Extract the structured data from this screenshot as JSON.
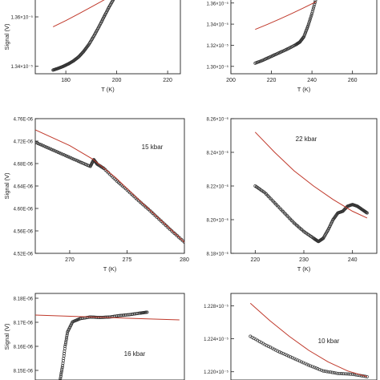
{
  "chart_data": [
    {
      "type": "scatter",
      "xlabel": "T (K)",
      "ylabel": "Signal (V)",
      "annotation": "",
      "xlim": [
        168,
        225
      ],
      "ylim": [
        1.337,
        1.372
      ],
      "xticks": [
        180,
        200,
        220
      ],
      "yticks": [
        1.34,
        1.36
      ],
      "yticklabels": [
        "1.34×10⁻⁵",
        "1.36×10⁻⁵"
      ],
      "series": [
        {
          "kind": "data",
          "points": [
            [
              175,
              1.3385
            ],
            [
              177,
              1.3392
            ],
            [
              179,
              1.34
            ],
            [
              181,
              1.341
            ],
            [
              183,
              1.3422
            ],
            [
              185,
              1.3438
            ],
            [
              187,
              1.346
            ],
            [
              189,
              1.3488
            ],
            [
              191,
              1.3522
            ],
            [
              193,
              1.356
            ],
            [
              195,
              1.36
            ],
            [
              197,
              1.364
            ],
            [
              199,
              1.3676
            ]
          ]
        },
        {
          "kind": "fit",
          "color": "#c0392b",
          "points": [
            [
              175,
              1.356
            ],
            [
              180,
              1.3585
            ],
            [
              185,
              1.3612
            ],
            [
              190,
              1.364
            ],
            [
              195,
              1.3668
            ],
            [
              199,
              1.3692
            ]
          ]
        }
      ]
    },
    {
      "type": "scatter",
      "xlabel": "T (K)",
      "ylabel": "",
      "annotation": "",
      "xlim": [
        200,
        272
      ],
      "ylim": [
        1.293,
        1.375
      ],
      "xticks": [
        200,
        220,
        240,
        260
      ],
      "yticks": [
        1.3,
        1.32,
        1.34,
        1.36
      ],
      "yticklabels": [
        "1.30×10⁻⁵",
        "1.32×10⁻⁵",
        "1.34×10⁻⁵",
        "1.36×10⁻⁵"
      ],
      "series": [
        {
          "kind": "data",
          "points": [
            [
              212,
              1.303
            ],
            [
              216,
              1.306
            ],
            [
              220,
              1.3095
            ],
            [
              224,
              1.313
            ],
            [
              228,
              1.3165
            ],
            [
              232,
              1.3205
            ],
            [
              234,
              1.323
            ],
            [
              236,
              1.328
            ],
            [
              238,
              1.338
            ],
            [
              240,
              1.35
            ],
            [
              242,
              1.364
            ]
          ]
        },
        {
          "kind": "fit",
          "color": "#c0392b",
          "points": [
            [
              212,
              1.335
            ],
            [
              218,
              1.3398
            ],
            [
              224,
              1.3448
            ],
            [
              230,
              1.35
            ],
            [
              236,
              1.3555
            ],
            [
              242,
              1.3612
            ]
          ]
        }
      ]
    },
    {
      "type": "scatter",
      "xlabel": "T (K)",
      "ylabel": "Signal (V)",
      "annotation": "15 kbar",
      "xlim": [
        267,
        280
      ],
      "ylim": [
        4.52,
        4.76
      ],
      "xticks": [
        270,
        275,
        280
      ],
      "yticks": [
        4.52,
        4.56,
        4.6,
        4.64,
        4.68,
        4.72,
        4.76
      ],
      "yticklabels": [
        "4.52E-06",
        "4.56E-06",
        "4.60E-06",
        "4.64E-06",
        "4.68E-06",
        "4.72E-06",
        "4.76E-06"
      ],
      "series": [
        {
          "kind": "data",
          "points": [
            [
              267,
              4.718
            ],
            [
              268,
              4.709
            ],
            [
              269,
              4.7
            ],
            [
              270,
              4.691
            ],
            [
              271,
              4.682
            ],
            [
              271.8,
              4.675
            ],
            [
              272.1,
              4.687
            ],
            [
              272.4,
              4.679
            ],
            [
              273,
              4.671
            ],
            [
              274,
              4.651
            ],
            [
              275,
              4.633
            ],
            [
              276,
              4.614
            ],
            [
              277,
              4.596
            ],
            [
              278,
              4.577
            ],
            [
              279,
              4.558
            ],
            [
              280,
              4.54
            ]
          ]
        },
        {
          "kind": "fit",
          "color": "#c0392b",
          "points": [
            [
              267,
              4.74
            ],
            [
              270,
              4.712
            ],
            [
              272,
              4.688
            ],
            [
              274,
              4.655
            ],
            [
              276,
              4.616
            ],
            [
              278,
              4.578
            ],
            [
              280,
              4.54
            ]
          ]
        }
      ]
    },
    {
      "type": "scatter",
      "xlabel": "T (K)",
      "ylabel": "",
      "annotation": "22 kbar",
      "xlim": [
        215,
        245
      ],
      "ylim": [
        8.18,
        8.26
      ],
      "xticks": [
        220,
        230,
        240
      ],
      "yticks": [
        8.18,
        8.2,
        8.22,
        8.24,
        8.26
      ],
      "yticklabels": [
        "8.18×10⁻⁶",
        "8.20×10⁻⁶",
        "8.22×10⁻⁶",
        "8.24×10⁻⁶",
        "8.26×10⁻⁶"
      ],
      "series": [
        {
          "kind": "data",
          "points": [
            [
              220,
              8.22
            ],
            [
              222,
              8.216
            ],
            [
              224,
              8.21
            ],
            [
              226,
              8.204
            ],
            [
              228,
              8.198
            ],
            [
              230,
              8.193
            ],
            [
              232,
              8.189
            ],
            [
              233,
              8.187
            ],
            [
              234,
              8.189
            ],
            [
              235,
              8.194
            ],
            [
              236,
              8.2
            ],
            [
              237,
              8.204
            ],
            [
              238,
              8.205
            ],
            [
              239,
              8.208
            ],
            [
              240,
              8.209
            ],
            [
              241,
              8.208
            ],
            [
              242,
              8.206
            ],
            [
              243,
              8.204
            ]
          ]
        },
        {
          "kind": "fit",
          "color": "#c0392b",
          "points": [
            [
              220,
              8.252
            ],
            [
              224,
              8.24
            ],
            [
              228,
              8.229
            ],
            [
              232,
              8.22
            ],
            [
              236,
              8.212
            ],
            [
              240,
              8.205
            ],
            [
              243,
              8.201
            ]
          ]
        }
      ]
    },
    {
      "type": "scatter",
      "xlabel": "",
      "ylabel": "",
      "annotation": "16 kbar",
      "xlim": [
        200,
        260
      ],
      "ylim": [
        8.146,
        8.182
      ],
      "xticks": [],
      "yticks": [
        8.15,
        8.16,
        8.17,
        8.18
      ],
      "yticklabels": [
        "8.15E-06",
        "8.16E-06",
        "8.17E-06",
        "8.18E-06"
      ],
      "series": [
        {
          "kind": "data",
          "points": [
            [
              210,
              8.146
            ],
            [
              211,
              8.152
            ],
            [
              212,
              8.16
            ],
            [
              213,
              8.166
            ],
            [
              215,
              8.1702
            ],
            [
              218,
              8.1715
            ],
            [
              222,
              8.1722
            ],
            [
              226,
              8.172
            ],
            [
              230,
              8.1722
            ],
            [
              234,
              8.1728
            ],
            [
              238,
              8.1732
            ],
            [
              242,
              8.1738
            ],
            [
              245,
              8.1742
            ]
          ]
        },
        {
          "kind": "fit",
          "color": "#c0392b",
          "points": [
            [
              200,
              8.173
            ],
            [
              220,
              8.1723
            ],
            [
              240,
              8.1716
            ],
            [
              258,
              8.171
            ]
          ]
        }
      ]
    },
    {
      "type": "scatter",
      "xlabel": "",
      "ylabel": "Signal (V)",
      "annotation": "10 kbar",
      "xlim": [
        200,
        260
      ],
      "ylim": [
        1.219,
        1.2295
      ],
      "xticks": [],
      "yticks": [
        1.22,
        1.224,
        1.228
      ],
      "yticklabels": [
        "1.220×10⁻⁵",
        "1.224×10⁻⁵",
        "1.228×10⁻⁵"
      ],
      "series": [
        {
          "kind": "data",
          "points": [
            [
              208,
              1.2243
            ],
            [
              214,
              1.2233
            ],
            [
              220,
              1.2224
            ],
            [
              226,
              1.2216
            ],
            [
              232,
              1.2208
            ],
            [
              238,
              1.2201
            ],
            [
              244,
              1.2198
            ],
            [
              250,
              1.2197
            ],
            [
              256,
              1.2194
            ]
          ]
        },
        {
          "kind": "fit",
          "color": "#c0392b",
          "points": [
            [
              208,
              1.2283
            ],
            [
              216,
              1.2262
            ],
            [
              224,
              1.2243
            ],
            [
              232,
              1.2226
            ],
            [
              240,
              1.2212
            ],
            [
              248,
              1.2201
            ],
            [
              256,
              1.2194
            ]
          ]
        }
      ]
    }
  ]
}
